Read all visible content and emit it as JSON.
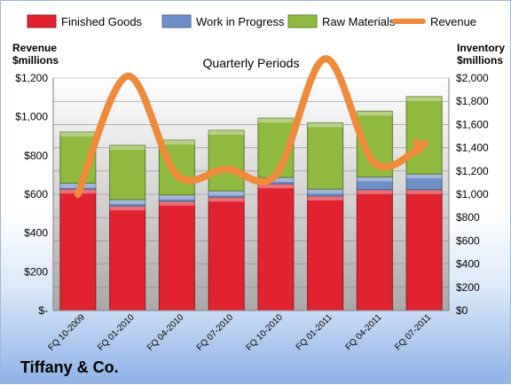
{
  "chart_data": {
    "type": "bar",
    "title": "Quarterly Periods",
    "left_axis_label": [
      "Revenue",
      "$millions"
    ],
    "right_axis_label": [
      "Inventory",
      "$millions"
    ],
    "categories": [
      "FQ 10-2009",
      "FQ 01-2010",
      "FQ 04-2010",
      "FQ 07-2010",
      "FQ 10-2010",
      "FQ 01-2011",
      "FQ 04-2011",
      "FQ 07-2011"
    ],
    "stacked_series": [
      {
        "name": "Finished Goods",
        "values": [
          1045,
          900,
          940,
          975,
          1090,
          985,
          1040,
          1040
        ],
        "color": "#e0232f"
      },
      {
        "name": "Work in Progress",
        "values": [
          50,
          55,
          55,
          55,
          55,
          60,
          110,
          135
        ],
        "color": "#6f8fc8"
      },
      {
        "name": "Raw Materials",
        "values": [
          440,
          465,
          470,
          520,
          510,
          570,
          565,
          665
        ],
        "color": "#8fb93f"
      }
    ],
    "line_series": {
      "name": "Revenue",
      "values": [
        600,
        1210,
        700,
        730,
        700,
        1300,
        760,
        860
      ],
      "color": "#ef8a3a"
    },
    "y_left": {
      "min": 0,
      "max": 1200,
      "ticks": [
        "$-",
        "$200",
        "$400",
        "$600",
        "$800",
        "$1,000",
        "$1,200"
      ]
    },
    "y_right": {
      "min": 0,
      "max": 2000,
      "ticks": [
        "$0",
        "$200",
        "$400",
        "$600",
        "$800",
        "$1,000",
        "$1,200",
        "$1,400",
        "$1,600",
        "$1,800",
        "$2,000"
      ]
    },
    "legend_position": "top",
    "grid": true
  },
  "company": "Tiffany & Co."
}
